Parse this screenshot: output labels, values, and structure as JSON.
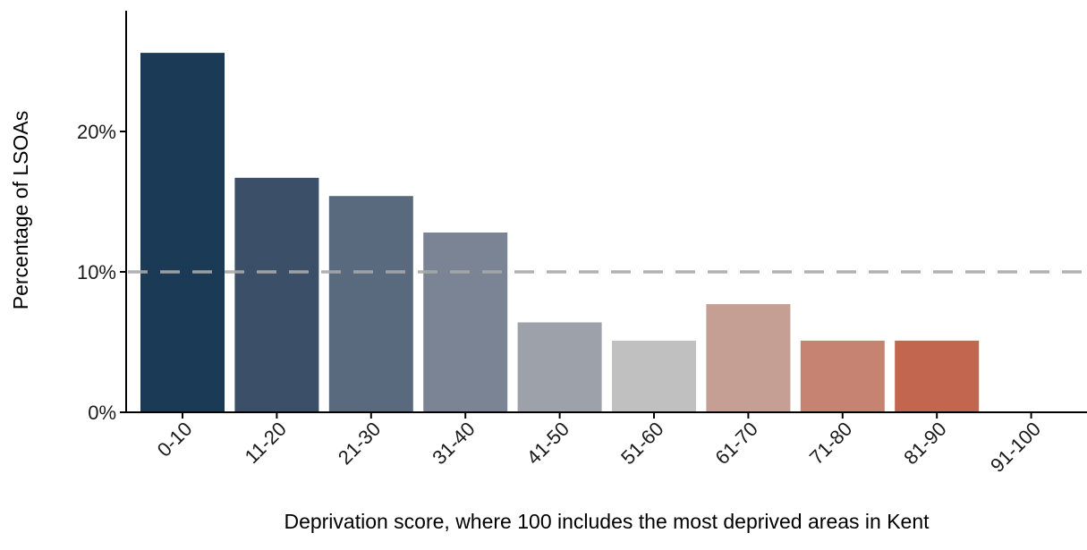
{
  "chart_data": {
    "type": "bar",
    "title": "",
    "xlabel": "Deprivation score, where 100 includes the most deprived areas in Kent",
    "ylabel": "Percentage of LSOAs",
    "categories": [
      "0-10",
      "11-20",
      "21-30",
      "31-40",
      "41-50",
      "51-60",
      "61-70",
      "71-80",
      "81-90",
      "91-100"
    ],
    "values": [
      25.6,
      16.7,
      15.4,
      12.8,
      6.4,
      5.1,
      7.7,
      5.1,
      5.1,
      0
    ],
    "bar_colors": [
      "#1a3a56",
      "#3b5068",
      "#596a7e",
      "#7a8494",
      "#9da1a9",
      "#c0c0c0",
      "#c59e94",
      "#c68372",
      "#c3664f",
      "#c3664f"
    ],
    "ylim": [
      0,
      28
    ],
    "yticks": [
      0,
      10,
      20
    ],
    "ytick_labels": [
      "0%",
      "10%",
      "20%"
    ],
    "reference_line": {
      "value": 10,
      "style": "dashed",
      "color": "#a9a9a9"
    },
    "grid": false,
    "legend": "none"
  }
}
